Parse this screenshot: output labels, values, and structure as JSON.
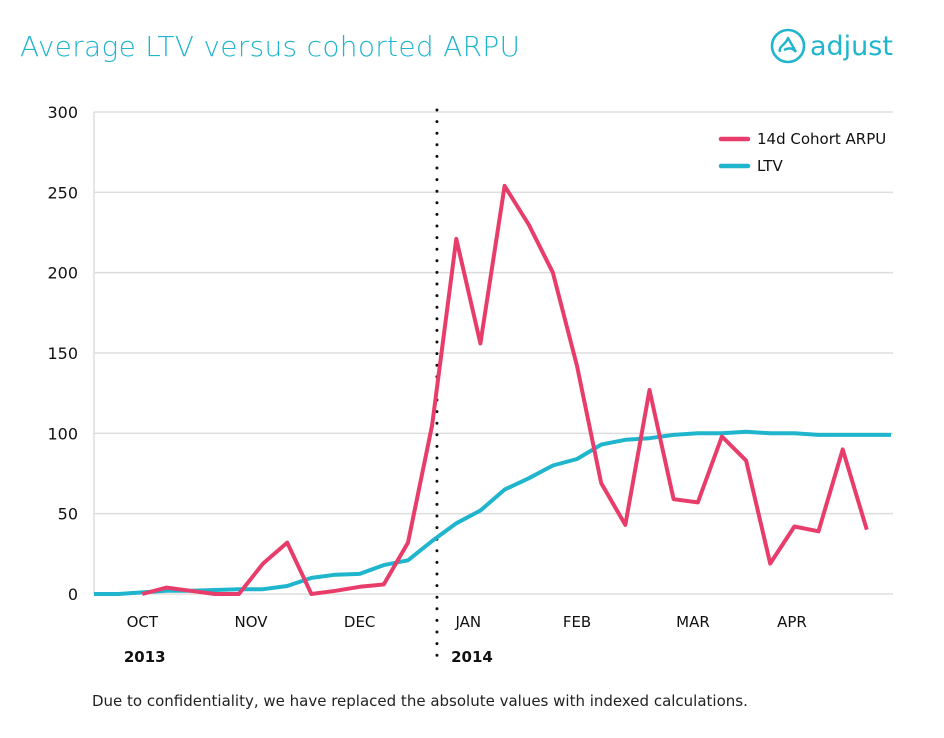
{
  "title": "Average LTV versus cohorted ARPU",
  "logo": {
    "text": "adjust",
    "icon": "adjust-logo-icon"
  },
  "footnote": "Due to confidentiality, we have replaced the absolute values with indexed calculations.",
  "colors": {
    "arpu": "#e83d6b",
    "ltv": "#1fb5cc",
    "grid": "#dddddd",
    "title": "#1fb5cc"
  },
  "chart_data": {
    "type": "line",
    "title": "Average LTV versus cohorted ARPU",
    "xlabel": "",
    "ylabel": "",
    "ylim": [
      0,
      300
    ],
    "yticks": [
      0,
      50,
      100,
      150,
      200,
      250,
      300
    ],
    "grid": true,
    "legend_position": "top-right",
    "x": [
      0,
      1,
      2,
      3,
      4,
      5,
      6,
      7,
      8,
      9,
      10,
      11,
      12,
      13,
      14,
      15,
      16,
      17,
      18,
      19,
      20,
      21,
      22,
      23,
      24,
      25,
      26,
      27,
      28,
      29,
      30,
      31,
      32,
      33
    ],
    "month_ticks": [
      {
        "label": "OCT",
        "x": 2
      },
      {
        "label": "NOV",
        "x": 6.5
      },
      {
        "label": "DEC",
        "x": 11
      },
      {
        "label": "JAN",
        "x": 15.5
      },
      {
        "label": "FEB",
        "x": 20
      },
      {
        "label": "MAR",
        "x": 24.8
      },
      {
        "label": "APR",
        "x": 28.9
      }
    ],
    "year_labels": [
      {
        "label": "2013",
        "x": 2.1
      },
      {
        "label": "2014",
        "x": 15.65
      }
    ],
    "year_divider_x": 14.2,
    "series": [
      {
        "name": "14d Cohort ARPU",
        "color": "#e83d6b",
        "values": [
          null,
          null,
          0,
          4,
          2,
          0,
          0,
          19,
          32,
          0,
          2,
          4.5,
          6,
          32,
          105,
          221,
          156,
          254,
          230,
          200,
          142,
          69,
          43,
          127,
          59,
          57,
          98,
          83,
          19,
          42,
          39,
          90,
          40,
          null
        ]
      },
      {
        "name": "LTV",
        "color": "#1fb5cc",
        "values": [
          0,
          0,
          1,
          2,
          2,
          2.5,
          3,
          3,
          5,
          10,
          12,
          12.5,
          18,
          21,
          33,
          44,
          52,
          65,
          72,
          80,
          84,
          93,
          96,
          97,
          99,
          100,
          100,
          101,
          100,
          100,
          99,
          99,
          99,
          99
        ]
      }
    ]
  }
}
